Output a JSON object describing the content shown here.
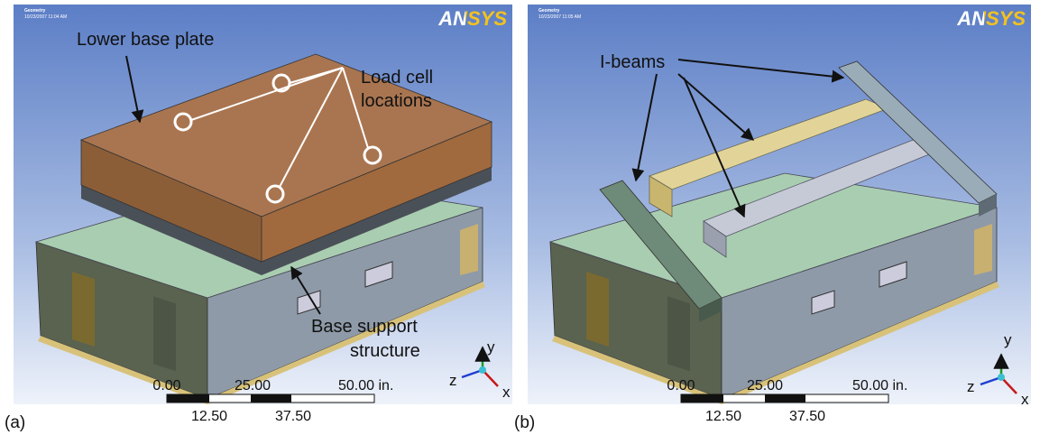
{
  "panels": [
    {
      "label": "(a)",
      "header": {
        "title": "Geometry",
        "date": "10/23/2007 11:04 AM"
      },
      "logo": "ANSYS",
      "annotations": [
        "Lower base plate",
        "Load cell",
        "locations",
        "Base support",
        "structure"
      ],
      "scale": {
        "top": [
          "0.00",
          "25.00",
          "50.00 in."
        ],
        "bottom": [
          "12.50",
          "37.50"
        ]
      },
      "axes": {
        "y": "y",
        "z": "z",
        "x": "x"
      }
    },
    {
      "label": "(b)",
      "header": {
        "title": "Geometry",
        "date": "10/23/2007 11:05 AM"
      },
      "logo": "ANSYS",
      "annotations": [
        "I-beams"
      ],
      "scale": {
        "top": [
          "0.00",
          "25.00",
          "50.00 in."
        ],
        "bottom": [
          "12.50",
          "37.50"
        ]
      },
      "axes": {
        "y": "y",
        "z": "z",
        "x": "x"
      }
    }
  ]
}
